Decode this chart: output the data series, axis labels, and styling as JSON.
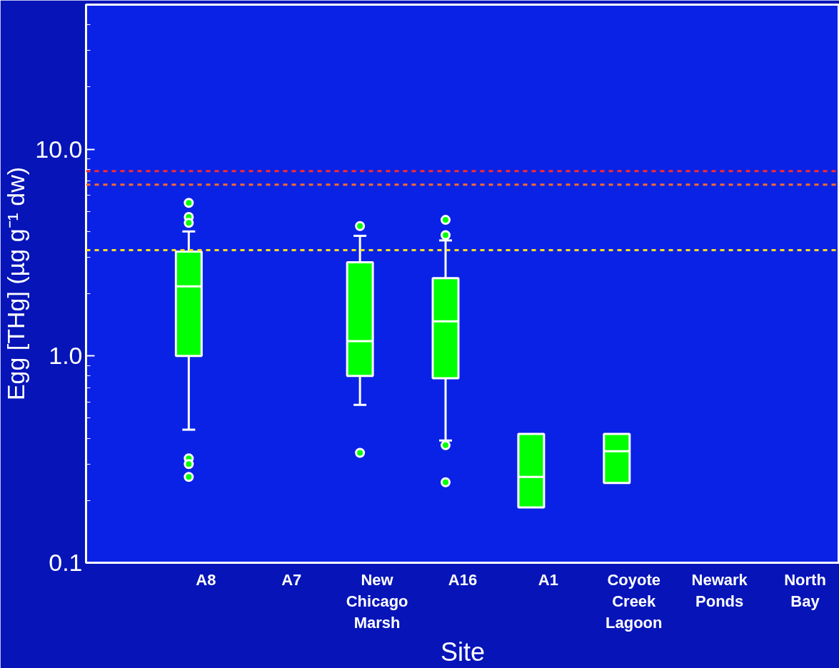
{
  "chart_data": {
    "type": "box",
    "xlabel": "Site",
    "ylabel": "Egg [THg] (µg g⁻¹ dw)",
    "categories": [
      "A8",
      "A7",
      "New Chicago Marsh",
      "A16",
      "A1",
      "Coyote Creek Lagoon",
      "Newark Ponds",
      "North Bay"
    ],
    "boxes": [
      {
        "low": 0.44,
        "q1": 1.0,
        "median": 2.17,
        "q3": 3.2,
        "high": 4.0,
        "outliers": [
          5.5,
          4.7,
          4.4,
          0.32,
          0.3,
          0.26
        ]
      },
      null,
      {
        "low": 0.58,
        "q1": 0.8,
        "median": 1.18,
        "q3": 2.84,
        "high": 3.81,
        "outliers": [
          4.25,
          0.34
        ]
      },
      {
        "low": 0.39,
        "q1": 0.78,
        "median": 1.47,
        "q3": 2.38,
        "high": 3.62,
        "outliers": [
          4.55,
          3.84,
          0.37,
          0.245
        ]
      },
      {
        "low": 0.185,
        "q1": 0.185,
        "median": 0.26,
        "q3": 0.42,
        "high": 0.42
      },
      {
        "low": 0.243,
        "q1": 0.243,
        "median": 0.346,
        "q3": 0.42,
        "high": 0.42
      },
      null,
      null
    ],
    "color": "#00ff00",
    "log": "y",
    "ylim": [
      0.1,
      50
    ],
    "yticks": [
      {
        "value": 0.1,
        "label": "0.1"
      },
      {
        "value": 1,
        "label": "1.0"
      },
      {
        "value": 10,
        "label": "10.0"
      }
    ],
    "ref_lines": [
      {
        "axis": "y",
        "value": 7.84,
        "color": "#ff2a2a",
        "line_style": "dashed"
      },
      {
        "axis": "y",
        "value": 6.74,
        "color": "#ff6a2a",
        "line_style": "dashed"
      },
      {
        "axis": "y",
        "value": 3.25,
        "color": "#ffe020",
        "line_style": "dashed"
      }
    ],
    "grid": false
  }
}
